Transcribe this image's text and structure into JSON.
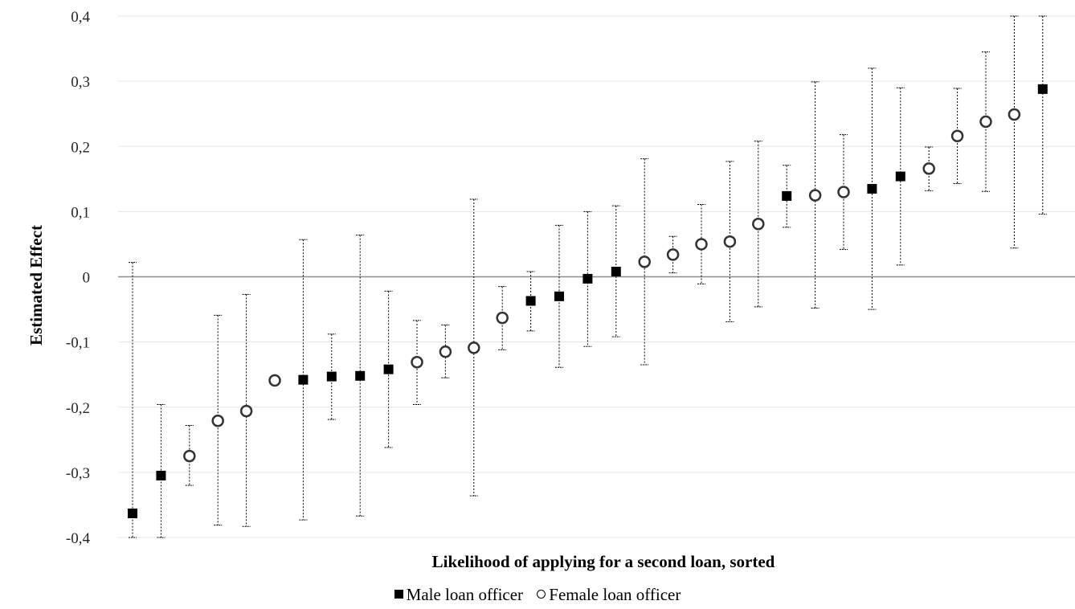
{
  "chart_data": {
    "type": "scatter",
    "xlabel": "Likelihood of applying for a second loan, sorted",
    "ylabel": "Estimated Effect",
    "ylim": [
      -0.4,
      0.4
    ],
    "yticks": [
      "-0,4",
      "-0,3",
      "-0,2",
      "-0,1",
      "0",
      "0,1",
      "0,2",
      "0,3",
      "0,4"
    ],
    "ytick_values": [
      -0.4,
      -0.3,
      -0.2,
      -0.1,
      0,
      0.1,
      0.2,
      0.3,
      0.4
    ],
    "grid": true,
    "error_bars": true,
    "legend_position": "bottom",
    "series": [
      {
        "name": "Male loan officer",
        "marker": "filled-square",
        "color": "#000000"
      },
      {
        "name": "Female loan officer",
        "marker": "hollow-circle",
        "color": "#000000"
      }
    ],
    "points": [
      {
        "rank": 1,
        "series": "Male loan officer",
        "y": -0.363,
        "lo": -0.4,
        "hi": 0.022
      },
      {
        "rank": 2,
        "series": "Male loan officer",
        "y": -0.305,
        "lo": -0.4,
        "hi": -0.196
      },
      {
        "rank": 3,
        "series": "Female loan officer",
        "y": -0.275,
        "lo": -0.32,
        "hi": -0.228
      },
      {
        "rank": 4,
        "series": "Female loan officer",
        "y": -0.221,
        "lo": -0.381,
        "hi": -0.059
      },
      {
        "rank": 5,
        "series": "Female loan officer",
        "y": -0.206,
        "lo": -0.383,
        "hi": -0.027
      },
      {
        "rank": 6,
        "series": "Female loan officer",
        "y": -0.159,
        "lo": -0.161,
        "hi": -0.157
      },
      {
        "rank": 7,
        "series": "Male loan officer",
        "y": -0.158,
        "lo": -0.373,
        "hi": 0.057
      },
      {
        "rank": 8,
        "series": "Male loan officer",
        "y": -0.153,
        "lo": -0.219,
        "hi": -0.088
      },
      {
        "rank": 9,
        "series": "Male loan officer",
        "y": -0.152,
        "lo": -0.367,
        "hi": 0.064
      },
      {
        "rank": 10,
        "series": "Male loan officer",
        "y": -0.142,
        "lo": -0.262,
        "hi": -0.022
      },
      {
        "rank": 11,
        "series": "Female loan officer",
        "y": -0.131,
        "lo": -0.196,
        "hi": -0.067
      },
      {
        "rank": 12,
        "series": "Female loan officer",
        "y": -0.115,
        "lo": -0.155,
        "hi": -0.074
      },
      {
        "rank": 13,
        "series": "Female loan officer",
        "y": -0.109,
        "lo": -0.336,
        "hi": 0.119
      },
      {
        "rank": 14,
        "series": "Female loan officer",
        "y": -0.063,
        "lo": -0.112,
        "hi": -0.015
      },
      {
        "rank": 15,
        "series": "Male loan officer",
        "y": -0.037,
        "lo": -0.083,
        "hi": 0.008
      },
      {
        "rank": 16,
        "series": "Male loan officer",
        "y": -0.03,
        "lo": -0.139,
        "hi": 0.079
      },
      {
        "rank": 17,
        "series": "Male loan officer",
        "y": -0.003,
        "lo": -0.107,
        "hi": 0.1
      },
      {
        "rank": 18,
        "series": "Male loan officer",
        "y": 0.008,
        "lo": -0.092,
        "hi": 0.109
      },
      {
        "rank": 19,
        "series": "Female loan officer",
        "y": 0.023,
        "lo": -0.135,
        "hi": 0.181
      },
      {
        "rank": 20,
        "series": "Female loan officer",
        "y": 0.034,
        "lo": 0.006,
        "hi": 0.062
      },
      {
        "rank": 21,
        "series": "Female loan officer",
        "y": 0.05,
        "lo": -0.011,
        "hi": 0.111
      },
      {
        "rank": 22,
        "series": "Female loan officer",
        "y": 0.054,
        "lo": -0.069,
        "hi": 0.177
      },
      {
        "rank": 23,
        "series": "Female loan officer",
        "y": 0.081,
        "lo": -0.046,
        "hi": 0.208
      },
      {
        "rank": 24,
        "series": "Male loan officer",
        "y": 0.124,
        "lo": 0.076,
        "hi": 0.171
      },
      {
        "rank": 25,
        "series": "Female loan officer",
        "y": 0.125,
        "lo": -0.048,
        "hi": 0.299
      },
      {
        "rank": 26,
        "series": "Female loan officer",
        "y": 0.13,
        "lo": 0.042,
        "hi": 0.218
      },
      {
        "rank": 27,
        "series": "Male loan officer",
        "y": 0.135,
        "lo": -0.05,
        "hi": 0.32
      },
      {
        "rank": 28,
        "series": "Male loan officer",
        "y": 0.154,
        "lo": 0.018,
        "hi": 0.29
      },
      {
        "rank": 29,
        "series": "Female loan officer",
        "y": 0.166,
        "lo": 0.132,
        "hi": 0.199
      },
      {
        "rank": 30,
        "series": "Female loan officer",
        "y": 0.216,
        "lo": 0.143,
        "hi": 0.289
      },
      {
        "rank": 31,
        "series": "Female loan officer",
        "y": 0.238,
        "lo": 0.131,
        "hi": 0.345
      },
      {
        "rank": 32,
        "series": "Female loan officer",
        "y": 0.249,
        "lo": 0.044,
        "hi": 0.4
      },
      {
        "rank": 33,
        "series": "Male loan officer",
        "y": 0.288,
        "lo": 0.096,
        "hi": 0.4
      }
    ]
  }
}
